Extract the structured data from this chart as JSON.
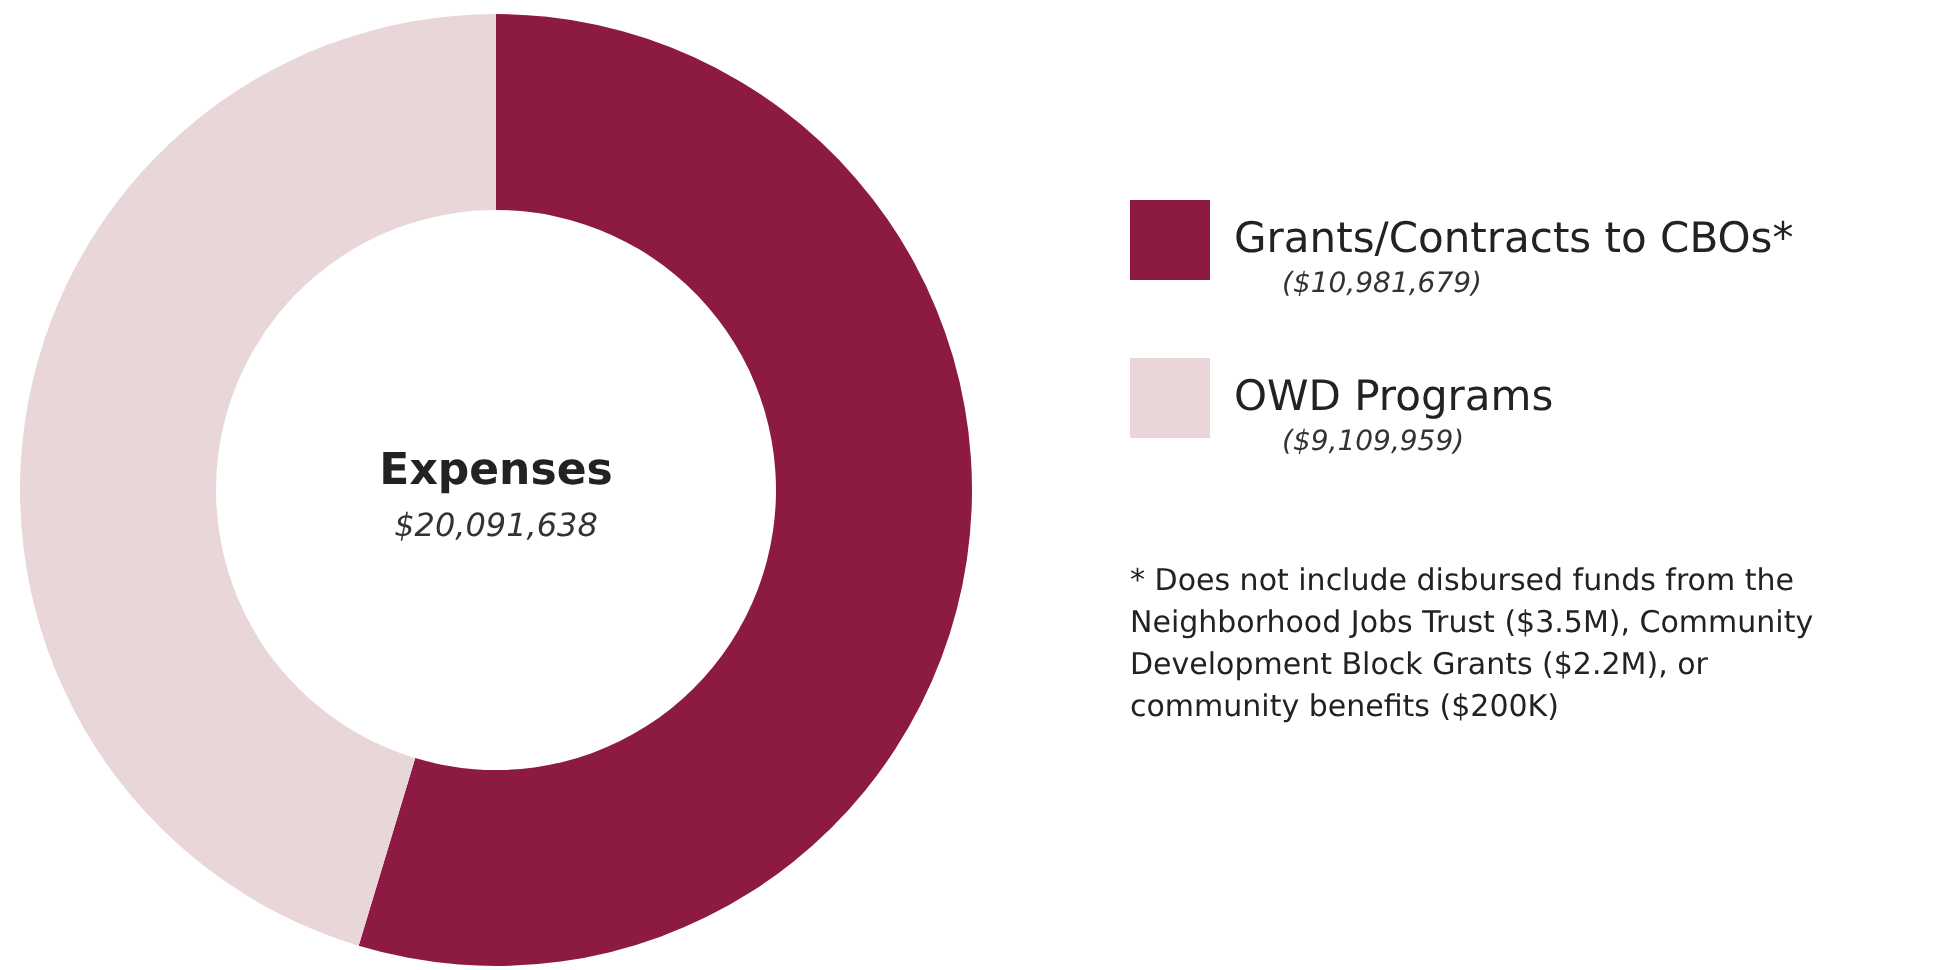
{
  "chart_data": {
    "type": "donut",
    "title": "Expenses",
    "subtitle": "$20,091,638",
    "categories": [
      "Grants/Contracts to CBOs*",
      "OWD Programs"
    ],
    "values": [
      10981679,
      9109959
    ],
    "value_labels": [
      "($10,981,679)",
      "($9,109,959)"
    ],
    "colors": [
      "#8c1a42",
      "#e8d6d8"
    ],
    "legend": "right",
    "annotations": [
      "* Does not include disbursed funds from the Neighborhood Jobs Trust ($3.5M), Community Development Block Grants ($2.2M), or community benefits ($200K)"
    ]
  }
}
